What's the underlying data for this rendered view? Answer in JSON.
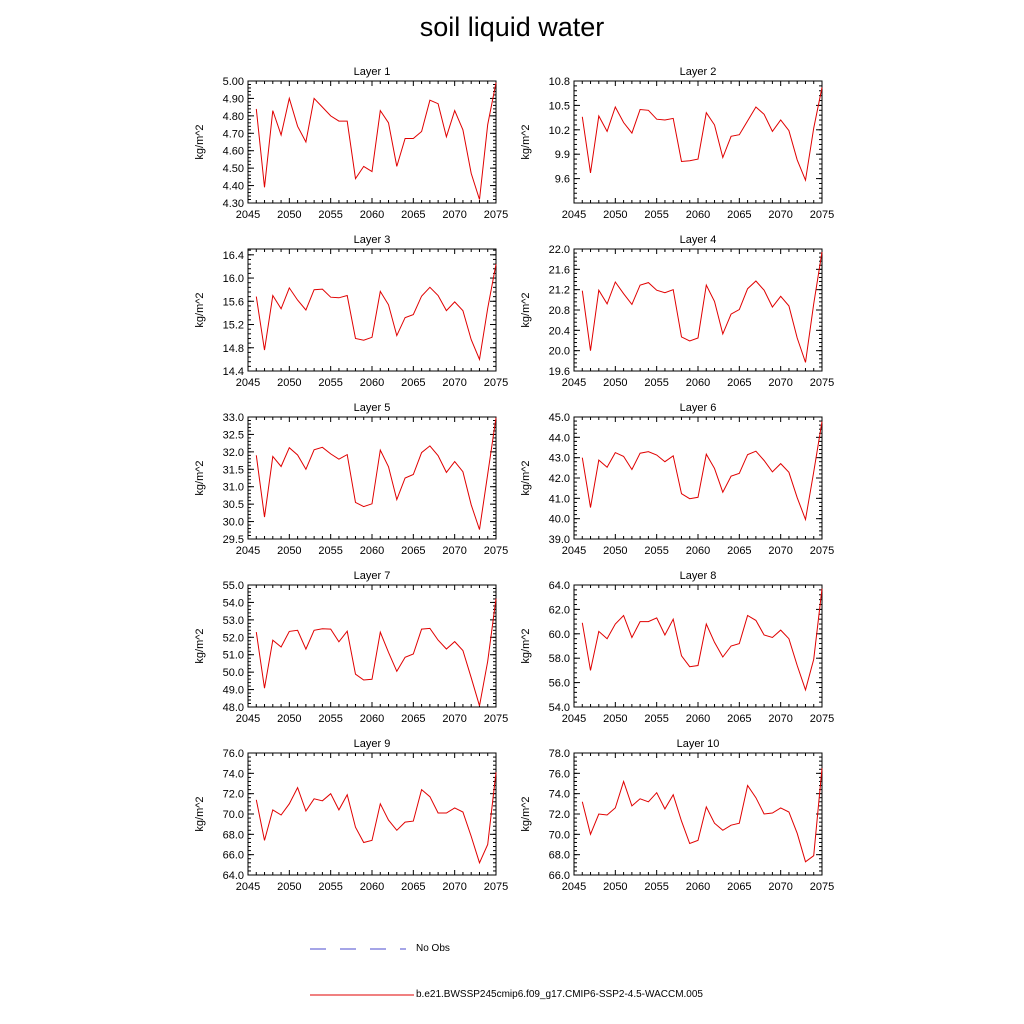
{
  "title": "soil liquid water",
  "legend": {
    "obs_label": "No Obs",
    "model_label": "b.e21.BWSSP245cmip6.f09_g17.CMIP6-SSP2-4.5-WACCM.005",
    "obs_color": "#4b4bcf",
    "model_color": "#e00000"
  },
  "chart_data": [
    {
      "type": "line",
      "title": "Layer 1",
      "ylabel": "kg/m^2",
      "xlim": [
        2045,
        2075
      ],
      "ylim": [
        4.3,
        5.0
      ],
      "xticks": [
        "2045",
        "2050",
        "2055",
        "2060",
        "2065",
        "2070",
        "2075"
      ],
      "yticks": [
        "4.30",
        "4.40",
        "4.50",
        "4.60",
        "4.70",
        "4.80",
        "4.90",
        "5.00"
      ],
      "x": [
        2046,
        2047,
        2048,
        2049,
        2050,
        2051,
        2052,
        2053,
        2054,
        2055,
        2056,
        2057,
        2058,
        2059,
        2060,
        2061,
        2062,
        2063,
        2064,
        2065,
        2066,
        2067,
        2068,
        2069,
        2070,
        2071,
        2072,
        2073,
        2074,
        2075
      ],
      "series": [
        {
          "values": [
            4.84,
            4.39,
            4.83,
            4.69,
            4.9,
            4.74,
            4.65,
            4.9,
            4.85,
            4.8,
            4.77,
            4.77,
            4.44,
            4.51,
            4.48,
            4.83,
            4.76,
            4.51,
            4.67,
            4.67,
            4.71,
            4.89,
            4.87,
            4.68,
            4.83,
            4.72,
            4.47,
            4.32,
            4.75,
            4.99
          ]
        }
      ]
    },
    {
      "type": "line",
      "title": "Layer 2",
      "ylabel": "kg/m^2",
      "xlim": [
        2045,
        2075
      ],
      "ylim": [
        9.3,
        10.8
      ],
      "xticks": [
        "2045",
        "2050",
        "2055",
        "2060",
        "2065",
        "2070",
        "2075"
      ],
      "yticks": [
        "9.6",
        "9.9",
        "10.2",
        "10.5",
        "10.8"
      ],
      "x": [
        2046,
        2047,
        2048,
        2049,
        2050,
        2051,
        2052,
        2053,
        2054,
        2055,
        2056,
        2057,
        2058,
        2059,
        2060,
        2061,
        2062,
        2063,
        2064,
        2065,
        2066,
        2067,
        2068,
        2069,
        2070,
        2071,
        2072,
        2073,
        2074,
        2075
      ],
      "series": [
        {
          "values": [
            10.36,
            9.67,
            10.37,
            10.18,
            10.48,
            10.29,
            10.16,
            10.45,
            10.44,
            10.33,
            10.32,
            10.34,
            9.81,
            9.82,
            9.84,
            10.41,
            10.26,
            9.86,
            10.12,
            10.14,
            10.31,
            10.48,
            10.39,
            10.18,
            10.32,
            10.19,
            9.83,
            9.58,
            10.22,
            10.72
          ]
        }
      ]
    },
    {
      "type": "line",
      "title": "Layer 3",
      "ylabel": "kg/m^2",
      "xlim": [
        2045,
        2075
      ],
      "ylim": [
        14.4,
        16.5
      ],
      "xticks": [
        "2045",
        "2050",
        "2055",
        "2060",
        "2065",
        "2070",
        "2075"
      ],
      "yticks": [
        "14.4",
        "14.8",
        "15.2",
        "15.6",
        "16.0",
        "16.4"
      ],
      "x": [
        2046,
        2047,
        2048,
        2049,
        2050,
        2051,
        2052,
        2053,
        2054,
        2055,
        2056,
        2057,
        2058,
        2059,
        2060,
        2061,
        2062,
        2063,
        2064,
        2065,
        2066,
        2067,
        2068,
        2069,
        2070,
        2071,
        2072,
        2073,
        2074,
        2075
      ],
      "series": [
        {
          "values": [
            15.68,
            14.76,
            15.7,
            15.47,
            15.83,
            15.62,
            15.45,
            15.8,
            15.81,
            15.67,
            15.66,
            15.7,
            14.96,
            14.93,
            14.98,
            15.77,
            15.54,
            15.01,
            15.32,
            15.37,
            15.69,
            15.84,
            15.7,
            15.44,
            15.59,
            15.44,
            14.94,
            14.6,
            15.48,
            16.24
          ]
        }
      ]
    },
    {
      "type": "line",
      "title": "Layer 4",
      "ylabel": "kg/m^2",
      "xlim": [
        2045,
        2075
      ],
      "ylim": [
        19.6,
        22.0
      ],
      "xticks": [
        "2045",
        "2050",
        "2055",
        "2060",
        "2065",
        "2070",
        "2075"
      ],
      "yticks": [
        "19.6",
        "20.0",
        "20.4",
        "20.8",
        "21.2",
        "21.6",
        "22.0"
      ],
      "x": [
        2046,
        2047,
        2048,
        2049,
        2050,
        2051,
        2052,
        2053,
        2054,
        2055,
        2056,
        2057,
        2058,
        2059,
        2060,
        2061,
        2062,
        2063,
        2064,
        2065,
        2066,
        2067,
        2068,
        2069,
        2070,
        2071,
        2072,
        2073,
        2074,
        2075
      ],
      "series": [
        {
          "values": [
            21.18,
            20.0,
            21.19,
            20.92,
            21.35,
            21.12,
            20.91,
            21.29,
            21.34,
            21.19,
            21.14,
            21.2,
            20.27,
            20.19,
            20.25,
            21.29,
            20.97,
            20.33,
            20.72,
            20.81,
            21.22,
            21.37,
            21.19,
            20.86,
            21.07,
            20.88,
            20.25,
            19.77,
            20.92,
            21.94
          ]
        }
      ]
    },
    {
      "type": "line",
      "title": "Layer 5",
      "ylabel": "kg/m^2",
      "xlim": [
        2045,
        2075
      ],
      "ylim": [
        29.5,
        33.0
      ],
      "xticks": [
        "2045",
        "2050",
        "2055",
        "2060",
        "2065",
        "2070",
        "2075"
      ],
      "yticks": [
        "29.5",
        "30.0",
        "30.5",
        "31.0",
        "31.5",
        "32.0",
        "32.5",
        "33.0"
      ],
      "x": [
        2046,
        2047,
        2048,
        2049,
        2050,
        2051,
        2052,
        2053,
        2054,
        2055,
        2056,
        2057,
        2058,
        2059,
        2060,
        2061,
        2062,
        2063,
        2064,
        2065,
        2066,
        2067,
        2068,
        2069,
        2070,
        2071,
        2072,
        2073,
        2074,
        2075
      ],
      "series": [
        {
          "values": [
            31.9,
            30.13,
            31.87,
            31.58,
            32.12,
            31.91,
            31.5,
            32.06,
            32.13,
            31.94,
            31.79,
            31.92,
            30.55,
            30.43,
            30.51,
            32.05,
            31.57,
            30.63,
            31.25,
            31.35,
            31.98,
            32.17,
            31.89,
            31.41,
            31.72,
            31.43,
            30.48,
            29.77,
            31.36,
            32.98
          ]
        }
      ]
    },
    {
      "type": "line",
      "title": "Layer 6",
      "ylabel": "kg/m^2",
      "xlim": [
        2045,
        2075
      ],
      "ylim": [
        39.0,
        45.0
      ],
      "xticks": [
        "2045",
        "2050",
        "2055",
        "2060",
        "2065",
        "2070",
        "2075"
      ],
      "yticks": [
        "39.0",
        "40.0",
        "41.0",
        "42.0",
        "43.0",
        "44.0",
        "45.0"
      ],
      "x": [
        2046,
        2047,
        2048,
        2049,
        2050,
        2051,
        2052,
        2053,
        2054,
        2055,
        2056,
        2057,
        2058,
        2059,
        2060,
        2061,
        2062,
        2063,
        2064,
        2065,
        2066,
        2067,
        2068,
        2069,
        2070,
        2071,
        2072,
        2073,
        2074,
        2075
      ],
      "series": [
        {
          "values": [
            43.0,
            40.55,
            42.88,
            42.53,
            43.25,
            43.06,
            42.42,
            43.22,
            43.3,
            43.13,
            42.8,
            43.09,
            41.23,
            40.98,
            41.05,
            43.17,
            42.47,
            41.3,
            42.09,
            42.23,
            43.15,
            43.32,
            42.86,
            42.3,
            42.71,
            42.28,
            41.03,
            39.96,
            42.29,
            44.78
          ]
        }
      ]
    },
    {
      "type": "line",
      "title": "Layer 7",
      "ylabel": "kg/m^2",
      "xlim": [
        2045,
        2075
      ],
      "ylim": [
        48.0,
        55.0
      ],
      "xticks": [
        "2045",
        "2050",
        "2055",
        "2060",
        "2065",
        "2070",
        "2075"
      ],
      "yticks": [
        "48.0",
        "49.0",
        "50.0",
        "51.0",
        "52.0",
        "53.0",
        "54.0",
        "55.0"
      ],
      "x": [
        2046,
        2047,
        2048,
        2049,
        2050,
        2051,
        2052,
        2053,
        2054,
        2055,
        2056,
        2057,
        2058,
        2059,
        2060,
        2061,
        2062,
        2063,
        2064,
        2065,
        2066,
        2067,
        2068,
        2069,
        2070,
        2071,
        2072,
        2073,
        2074,
        2075
      ],
      "series": [
        {
          "values": [
            52.3,
            49.08,
            51.83,
            51.44,
            52.34,
            52.4,
            51.32,
            52.4,
            52.49,
            52.47,
            51.74,
            52.35,
            49.88,
            49.55,
            49.59,
            52.29,
            51.14,
            50.05,
            50.85,
            51.04,
            52.47,
            52.51,
            51.84,
            51.33,
            51.75,
            51.24,
            49.68,
            48.07,
            50.62,
            54.22
          ]
        }
      ]
    },
    {
      "type": "line",
      "title": "Layer 8",
      "ylabel": "kg/m^2",
      "xlim": [
        2045,
        2075
      ],
      "ylim": [
        54.0,
        64.0
      ],
      "xticks": [
        "2045",
        "2050",
        "2055",
        "2060",
        "2065",
        "2070",
        "2075"
      ],
      "yticks": [
        "54.0",
        "56.0",
        "58.0",
        "60.0",
        "62.0",
        "64.0"
      ],
      "x": [
        2046,
        2047,
        2048,
        2049,
        2050,
        2051,
        2052,
        2053,
        2054,
        2055,
        2056,
        2057,
        2058,
        2059,
        2060,
        2061,
        2062,
        2063,
        2064,
        2065,
        2066,
        2067,
        2068,
        2069,
        2070,
        2071,
        2072,
        2073,
        2074,
        2075
      ],
      "series": [
        {
          "values": [
            60.9,
            57.0,
            60.2,
            59.6,
            60.8,
            61.5,
            59.7,
            61.0,
            61.0,
            61.3,
            59.9,
            61.2,
            58.2,
            57.3,
            57.4,
            60.8,
            59.3,
            58.1,
            59.0,
            59.2,
            61.5,
            61.1,
            59.9,
            59.7,
            60.3,
            59.6,
            57.4,
            55.4,
            57.9,
            63.7
          ]
        }
      ]
    },
    {
      "type": "line",
      "title": "Layer 9",
      "ylabel": "kg/m^2",
      "xlim": [
        2045,
        2075
      ],
      "ylim": [
        64.0,
        76.0
      ],
      "xticks": [
        "2045",
        "2050",
        "2055",
        "2060",
        "2065",
        "2070",
        "2075"
      ],
      "yticks": [
        "64.0",
        "66.0",
        "68.0",
        "70.0",
        "72.0",
        "74.0",
        "76.0"
      ],
      "x": [
        2046,
        2047,
        2048,
        2049,
        2050,
        2051,
        2052,
        2053,
        2054,
        2055,
        2056,
        2057,
        2058,
        2059,
        2060,
        2061,
        2062,
        2063,
        2064,
        2065,
        2066,
        2067,
        2068,
        2069,
        2070,
        2071,
        2072,
        2073,
        2074,
        2075
      ],
      "series": [
        {
          "values": [
            71.4,
            67.4,
            70.4,
            69.9,
            71.0,
            72.6,
            70.3,
            71.5,
            71.3,
            72.0,
            70.4,
            71.9,
            68.7,
            67.2,
            67.4,
            71.0,
            69.4,
            68.4,
            69.2,
            69.3,
            72.4,
            71.7,
            70.1,
            70.1,
            70.6,
            70.2,
            67.8,
            65.2,
            67.0,
            74.1
          ]
        }
      ]
    },
    {
      "type": "line",
      "title": "Layer 10",
      "ylabel": "kg/m^2",
      "xlim": [
        2045,
        2075
      ],
      "ylim": [
        66.0,
        78.0
      ],
      "xticks": [
        "2045",
        "2050",
        "2055",
        "2060",
        "2065",
        "2070",
        "2075"
      ],
      "yticks": [
        "66.0",
        "68.0",
        "70.0",
        "72.0",
        "74.0",
        "76.0",
        "78.0"
      ],
      "x": [
        2046,
        2047,
        2048,
        2049,
        2050,
        2051,
        2052,
        2053,
        2054,
        2055,
        2056,
        2057,
        2058,
        2059,
        2060,
        2061,
        2062,
        2063,
        2064,
        2065,
        2066,
        2067,
        2068,
        2069,
        2070,
        2071,
        2072,
        2073,
        2074,
        2075
      ],
      "series": [
        {
          "values": [
            73.2,
            70.0,
            72.0,
            71.9,
            72.6,
            75.2,
            72.8,
            73.5,
            73.2,
            74.1,
            72.5,
            73.9,
            71.3,
            69.1,
            69.4,
            72.7,
            71.1,
            70.4,
            70.9,
            71.1,
            74.8,
            73.6,
            72.0,
            72.1,
            72.6,
            72.2,
            70.1,
            67.3,
            67.9,
            76.5
          ]
        }
      ]
    }
  ]
}
